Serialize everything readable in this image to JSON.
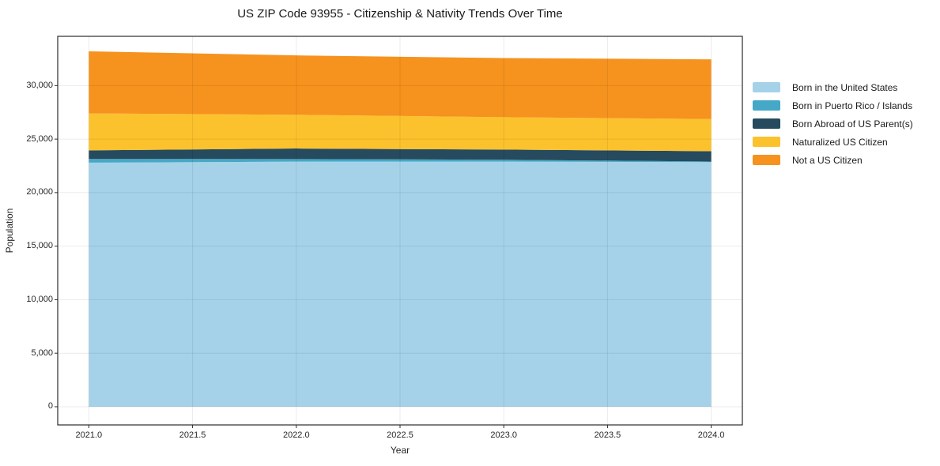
{
  "figure": {
    "background": "#ffffff",
    "spine_color": "#2b2b2b",
    "grid_color_rgba": "rgba(0,0,0,0.08)",
    "tick_color": "#2b2b2b"
  },
  "chart_data": {
    "type": "area",
    "stacked": true,
    "title": "US ZIP Code 93955 - Citizenship & Nativity Trends Over Time",
    "xlabel": "Year",
    "ylabel": "Population",
    "x": [
      2021,
      2022,
      2023,
      2024
    ],
    "series": [
      {
        "name": "Born in the United States",
        "color": "#A5D2E8",
        "values": [
          22800,
          22900,
          22900,
          22850
        ]
      },
      {
        "name": "Born in Puerto Rico / Islands",
        "color": "#45A8C6",
        "values": [
          350,
          240,
          170,
          60
        ]
      },
      {
        "name": "Born Abroad of US Parent(s)",
        "color": "#264A5E",
        "values": [
          800,
          980,
          950,
          960
        ]
      },
      {
        "name": "Naturalized US Citizen",
        "color": "#FCC22D",
        "values": [
          3450,
          3150,
          3030,
          3000
        ]
      },
      {
        "name": "Not a US Citizen",
        "color": "#F6921E",
        "values": [
          5800,
          5550,
          5520,
          5580
        ]
      }
    ],
    "totals": [
      33200,
      32820,
      32570,
      32450
    ],
    "xticks": {
      "values": [
        2021.0,
        2021.5,
        2022.0,
        2022.5,
        2023.0,
        2023.5,
        2024.0
      ],
      "labels": [
        "2021.0",
        "2021.5",
        "2022.0",
        "2022.5",
        "2023.0",
        "2023.5",
        "2024.0"
      ]
    },
    "yticks": {
      "values": [
        0,
        5000,
        10000,
        15000,
        20000,
        25000,
        30000
      ],
      "labels": [
        "0",
        "5,000",
        "10,000",
        "15,000",
        "20,000",
        "25,000",
        "30,000"
      ]
    },
    "xlim": [
      2020.85,
      2024.15
    ],
    "ylim": [
      -1700,
      34600
    ],
    "grid": true,
    "legend_position": "outside-center-right"
  }
}
